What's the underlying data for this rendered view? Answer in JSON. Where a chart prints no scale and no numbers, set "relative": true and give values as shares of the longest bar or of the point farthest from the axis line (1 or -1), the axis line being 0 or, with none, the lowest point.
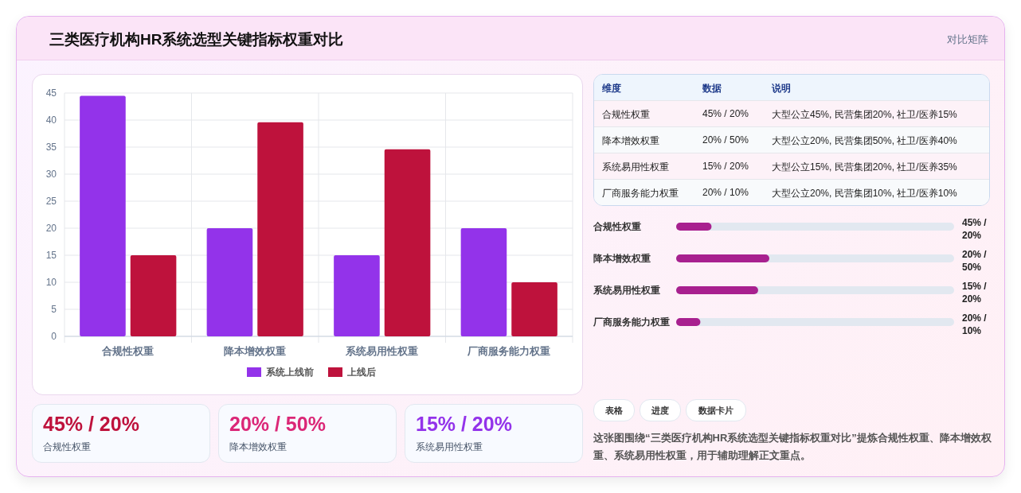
{
  "chart_data": [
    {
      "type": "other",
      "title": "三类医疗机构HR系统选型关键指标权重对比",
      "annotations": [
        "对比矩阵"
      ]
    },
    {
      "type": "bar",
      "categories": [
        "合规性权重",
        "降本增效权重",
        "系统易用性权重",
        "厂商服务能力权重"
      ],
      "series": [
        {
          "name": "系统上线前",
          "color": "#9333ea",
          "values": [
            44.5,
            20,
            15,
            20
          ]
        },
        {
          "name": "上线后",
          "color": "#be123c",
          "values": [
            15,
            39.6,
            34.6,
            10
          ]
        }
      ],
      "ylim": [
        0,
        45
      ],
      "yticks": [
        0,
        5,
        10,
        15,
        20,
        25,
        30,
        35,
        40,
        45
      ],
      "grid": true,
      "legend": "bottom"
    },
    {
      "type": "other",
      "annotations": [
        "维度",
        "数据",
        "说明",
        "合规性权重",
        "45% / 20%",
        "大型公立45%, 民营集团20%, 社卫/医养15%",
        "降本增效权重",
        "20% / 50%",
        "大型公立20%, 民营集团50%, 社卫/医养40%",
        "系统易用性权重",
        "15% / 20%",
        "大型公立15%, 民营集团20%, 社卫/医养35%",
        "厂商服务能力权重",
        "20% / 10%",
        "大型公立20%, 民营集团10%, 社卫/医养10%"
      ]
    },
    {
      "type": "bar",
      "orientation": "horizontal",
      "relative": true,
      "color": "#a8208f",
      "categories": [
        "合规性权重",
        "降本增效权重",
        "系统易用性权重",
        "厂商服务能力权重"
      ],
      "values": [
        0.38,
        1,
        0.88,
        0.26
      ],
      "annotations": [
        "45% / 20%",
        "20% / 50%",
        "15% / 20%",
        "20% / 10%"
      ]
    },
    {
      "type": "other",
      "colors": [
        "#be123c",
        "#db2777",
        "#9333ea"
      ],
      "annotations": [
        "45% / 20%",
        "合规性权重",
        "20% / 50%",
        "降本增效权重",
        "15% / 20%",
        "系统易用性权重"
      ]
    },
    {
      "type": "other",
      "annotations": [
        "表格",
        "进度",
        "数据卡片",
        "这张图围绕“三类医疗机构HR系统选型关键指标权重对比”提炼合规性权重、降本增效权重、系统易用性权重，用于辅助理解正文重点。"
      ]
    }
  ]
}
